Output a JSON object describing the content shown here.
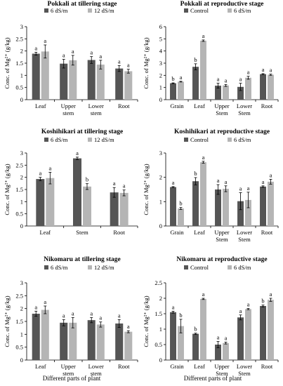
{
  "figure": {
    "xlabel_left": "Different parts of plant",
    "xlabel_right": "Different parts of plant"
  },
  "colors": {
    "dark": "#555555",
    "light": "#b5b5b5",
    "error": "#000000"
  },
  "chart_data": [
    {
      "type": "bar",
      "title": "Pokkali at tillering stage",
      "ylabel": "Conc. of Mg²⁺ (g/kg)",
      "ylim": [
        0,
        3
      ],
      "yticks": [
        0,
        0.5,
        1,
        1.5,
        2,
        2.5,
        3
      ],
      "categories": [
        "Leaf",
        "Upper stem",
        "Lower stem",
        "Root"
      ],
      "category_lines": [
        [
          "Leaf"
        ],
        [
          "Upper",
          "stem"
        ],
        [
          "Lower",
          "stem"
        ],
        [
          "Root"
        ]
      ],
      "legend_position": "top",
      "series": [
        {
          "name": "6 dS/m",
          "values": [
            1.89,
            1.48,
            1.63,
            1.28
          ],
          "errors": [
            0.06,
            0.18,
            0.14,
            0.12
          ],
          "letters": [
            "a",
            "a",
            "a",
            "a"
          ]
        },
        {
          "name": "12 dS/m",
          "values": [
            1.98,
            1.62,
            1.44,
            1.17
          ],
          "errors": [
            0.27,
            0.2,
            0.18,
            0.08
          ],
          "letters": [
            "a",
            "a",
            "a",
            "a"
          ]
        }
      ]
    },
    {
      "type": "bar",
      "title": "Pokkali at reproductive stage",
      "ylabel": "Conc. of Mg²⁺ (g/kg)",
      "ylim": [
        0,
        6
      ],
      "yticks": [
        0,
        1,
        2,
        3,
        4,
        5,
        6
      ],
      "categories": [
        "Grain",
        "Leaf",
        "Upper Stem",
        "Lower Stem",
        "Root"
      ],
      "category_lines": [
        [
          "Grain"
        ],
        [
          "Leaf"
        ],
        [
          "Upper",
          "Stem"
        ],
        [
          "Lower",
          "Stem"
        ],
        [
          "Root"
        ]
      ],
      "legend_position": "top",
      "series": [
        {
          "name": "Control",
          "values": [
            1.35,
            2.7,
            1.15,
            1.05,
            2.1
          ],
          "errors": [
            0.03,
            0.25,
            0.2,
            0.3,
            0.04
          ],
          "letters": [
            "b",
            "b",
            "a",
            "a",
            "a"
          ]
        },
        {
          "name": "6 dS/m",
          "values": [
            1.48,
            4.85,
            1.17,
            1.8,
            2.05
          ],
          "errors": [
            0.03,
            0.06,
            0.08,
            0.12,
            0.05
          ],
          "letters": [
            "a",
            "a",
            "a",
            "a",
            "a"
          ]
        }
      ]
    },
    {
      "type": "bar",
      "title": "Koshihikari at tillering stage",
      "ylabel": "Conc. of Mg²⁺ (g/kg)",
      "ylim": [
        0,
        3
      ],
      "yticks": [
        0,
        0.5,
        1,
        1.5,
        2,
        2.5,
        3
      ],
      "categories": [
        "Leaf",
        "Stem",
        "Root"
      ],
      "category_lines": [
        [
          "Leaf"
        ],
        [
          "Stem"
        ],
        [
          "Root"
        ]
      ],
      "legend_position": "top",
      "series": [
        {
          "name": "6 dS/m",
          "values": [
            1.93,
            2.78,
            1.38
          ],
          "errors": [
            0.07,
            0.05,
            0.2
          ],
          "letters": [
            "a",
            "a",
            "a"
          ]
        },
        {
          "name": "12 dS/m",
          "values": [
            1.97,
            1.62,
            1.36
          ],
          "errors": [
            0.24,
            0.12,
            0.12
          ],
          "letters": [
            "a",
            "b",
            "a"
          ]
        }
      ]
    },
    {
      "type": "bar",
      "title": "Koshihikari at reproductive stage",
      "ylabel": "Conc. of Mg²⁺ (g/kg)",
      "ylim": [
        0,
        3
      ],
      "yticks": [
        0,
        1,
        2,
        3
      ],
      "categories": [
        "Grain",
        "Leaf",
        "Upper Stem",
        "Lower Stem",
        "Root"
      ],
      "category_lines": [
        [
          "Grain"
        ],
        [
          "Leaf"
        ],
        [
          "Upper",
          "Stem"
        ],
        [
          "Lower",
          "Stem"
        ],
        [
          "Root"
        ]
      ],
      "legend_position": "top",
      "series": [
        {
          "name": "Control",
          "values": [
            1.6,
            1.84,
            1.5,
            1.02,
            1.62
          ],
          "errors": [
            0.02,
            0.15,
            0.2,
            0.35,
            0.03
          ],
          "letters": [
            "a",
            "b",
            "a",
            "a",
            "a"
          ]
        },
        {
          "name": "6 dS/m",
          "values": [
            0.72,
            2.62,
            1.53,
            1.07,
            1.82
          ],
          "errors": [
            0.04,
            0.04,
            0.12,
            0.32,
            0.1
          ],
          "letters": [
            "b",
            "a",
            "a",
            "a",
            "a"
          ]
        }
      ]
    },
    {
      "type": "bar",
      "title": "Nikomaru at tillering stage",
      "ylabel": "Conc. of Mg²⁺ (g/kg)",
      "ylim": [
        0,
        3
      ],
      "yticks": [
        0,
        0.5,
        1,
        1.5,
        2,
        2.5,
        3
      ],
      "categories": [
        "Leaf",
        "Upper stem",
        "Lower stem",
        "Root"
      ],
      "category_lines": [
        [
          "Leaf"
        ],
        [
          "Upper",
          "stem"
        ],
        [
          "Lower",
          "stem"
        ],
        [
          "Root"
        ]
      ],
      "legend_position": "top",
      "series": [
        {
          "name": "6 dS/m",
          "values": [
            1.8,
            1.45,
            1.55,
            1.42
          ],
          "errors": [
            0.1,
            0.12,
            0.1,
            0.15
          ],
          "letters": [
            "a",
            "a",
            "a",
            "a"
          ]
        },
        {
          "name": "12 dS/m",
          "values": [
            1.95,
            1.45,
            1.38,
            1.1
          ],
          "errors": [
            0.15,
            0.2,
            0.1,
            0.04
          ],
          "letters": [
            "a",
            "a",
            "a",
            "a"
          ]
        }
      ]
    },
    {
      "type": "bar",
      "title": "Nikomaru at reproductive stage",
      "ylabel": "Conc. of Mg²⁺ (g/kg)",
      "ylim": [
        0,
        2.5
      ],
      "yticks": [
        0,
        0.5,
        1,
        1.5,
        2,
        2.5
      ],
      "categories": [
        "Grain",
        "Leaf",
        "Upper Stem",
        "Lower Stem",
        "Root"
      ],
      "category_lines": [
        [
          "Grain"
        ],
        [
          "Leaf"
        ],
        [
          "Upper",
          "Stem"
        ],
        [
          "Lower",
          "Stem"
        ],
        [
          "Root"
        ]
      ],
      "legend_position": "top",
      "series": [
        {
          "name": "Control",
          "values": [
            1.55,
            0.85,
            0.5,
            1.38,
            1.75
          ],
          "errors": [
            0.03,
            0.02,
            0.1,
            0.08,
            0.03
          ],
          "letters": [
            "a",
            "b",
            "a",
            "a",
            "b"
          ]
        },
        {
          "name": "6 dS/m",
          "values": [
            1.1,
            1.98,
            0.55,
            1.65,
            1.95
          ],
          "errors": [
            0.22,
            0.02,
            0.03,
            0.02,
            0.05
          ],
          "letters": [
            "b",
            "a",
            "a",
            "a",
            "a"
          ]
        }
      ]
    }
  ]
}
